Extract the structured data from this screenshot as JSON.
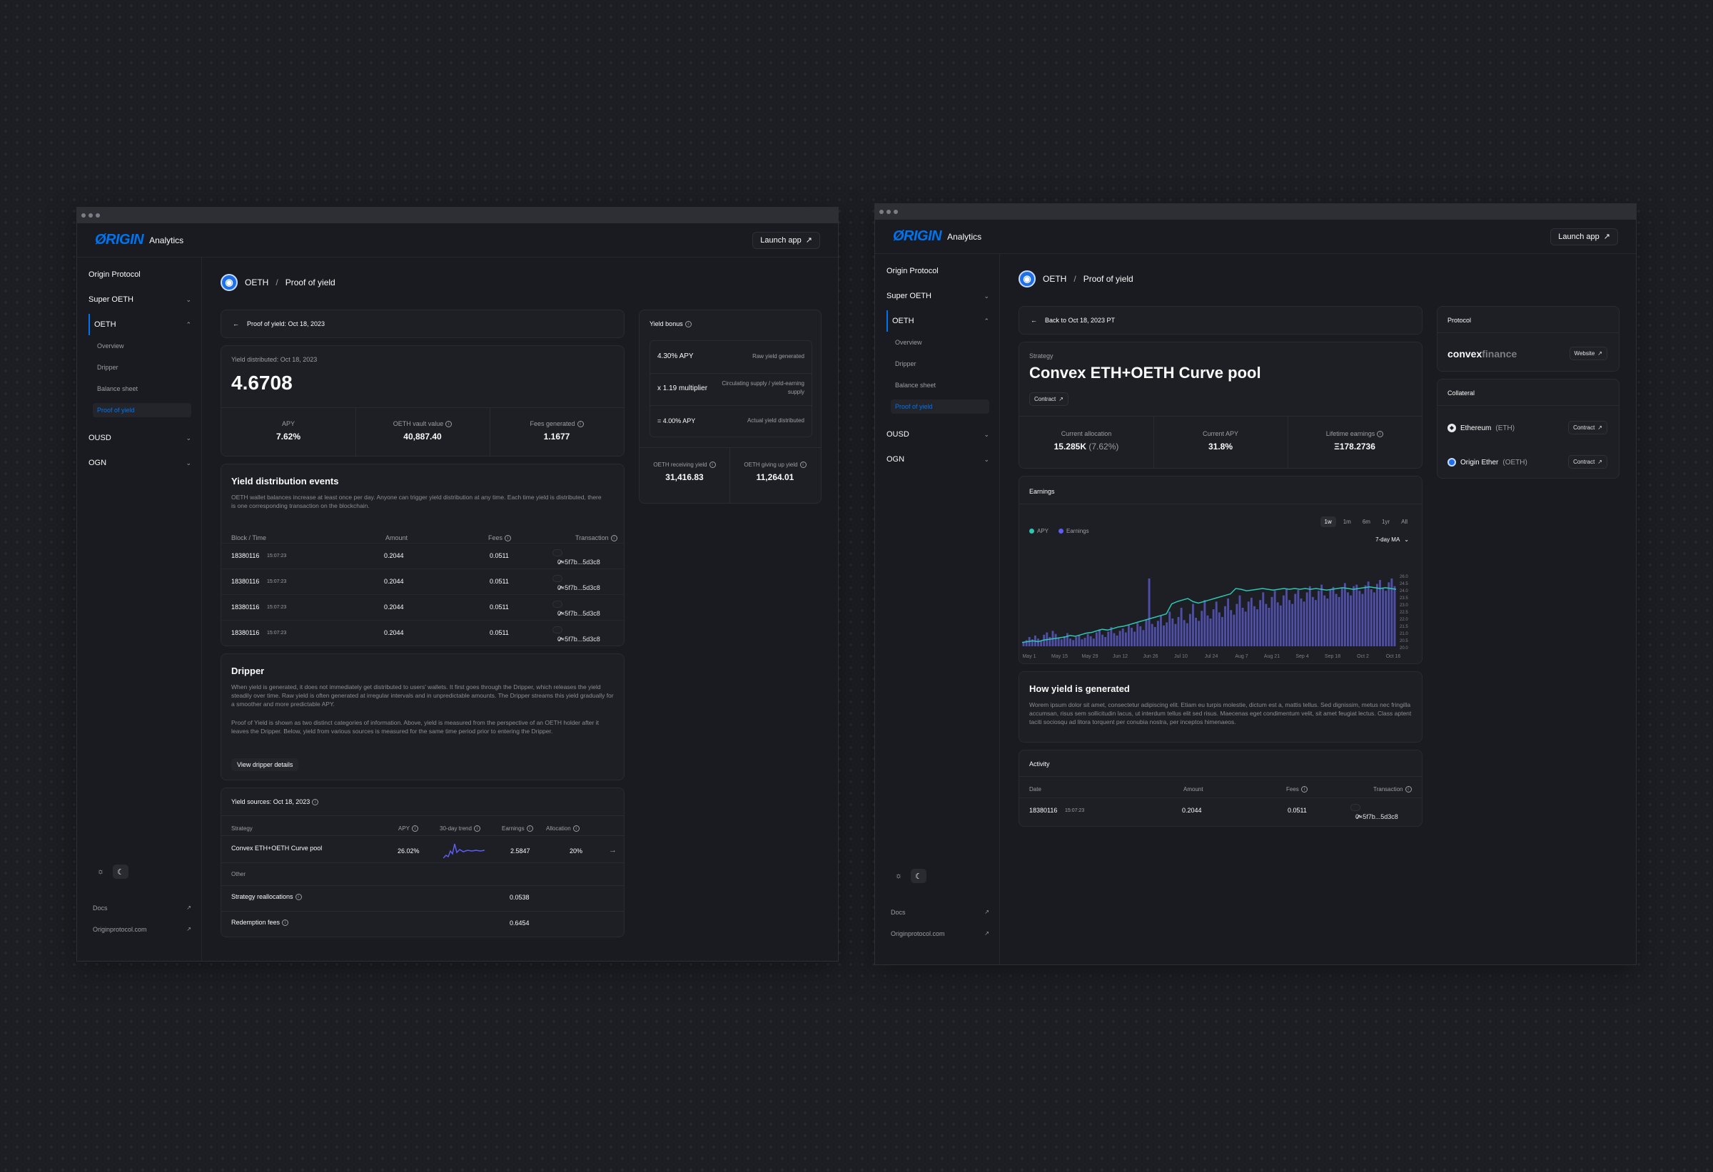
{
  "app": {
    "logo": "ØRIGIN",
    "product": "Analytics",
    "launch_label": "Launch app"
  },
  "sidebar": {
    "items": [
      {
        "label": "Origin Protocol"
      },
      {
        "label": "Super OETH"
      },
      {
        "label": "OETH"
      },
      {
        "label": "OUSD"
      },
      {
        "label": "OGN"
      }
    ],
    "oeth_sub": [
      "Overview",
      "Dripper",
      "Balance sheet",
      "Proof of yield"
    ],
    "footer": [
      "Docs",
      "Originprotocol.com"
    ]
  },
  "left": {
    "breadcrumb": {
      "token": "OETH",
      "sep": "/",
      "page": "Proof of yield"
    },
    "back": "Proof of yield: Oct 18, 2023",
    "yield_label": "Yield distributed: Oct 18, 2023",
    "yield_value": "4.6708",
    "stats": [
      {
        "label": "APY",
        "value": "7.62%"
      },
      {
        "label": "OETH vault value",
        "value": "40,887.40"
      },
      {
        "label": "Fees generated",
        "value": "1.1677"
      }
    ],
    "events": {
      "title": "Yield distribution events",
      "desc": "OETH wallet balances increase at least once per day. Anyone can trigger yield distribution at any time. Each time yield is distributed, there is one corresponding transaction on the blockchain.",
      "headers": [
        "Block / Time",
        "Amount",
        "Fees",
        "Transaction"
      ],
      "rows": [
        {
          "block": "18380116",
          "time": "15:07:23",
          "amount": "0.2044",
          "fees": "0.0511",
          "tx": "0×5f7b...5d3c8"
        },
        {
          "block": "18380116",
          "time": "15:07:23",
          "amount": "0.2044",
          "fees": "0.0511",
          "tx": "0×5f7b...5d3c8"
        },
        {
          "block": "18380116",
          "time": "15:07:23",
          "amount": "0.2044",
          "fees": "0.0511",
          "tx": "0×5f7b...5d3c8"
        },
        {
          "block": "18380116",
          "time": "15:07:23",
          "amount": "0.2044",
          "fees": "0.0511",
          "tx": "0×5f7b...5d3c8"
        }
      ]
    },
    "dripper": {
      "title": "Dripper",
      "p1": "When yield is generated, it does not immediately get distributed to users' wallets. It first goes through the Dripper, which releases the yield steadily over time. Raw yield is often generated at irregular intervals and in unpredictable amounts. The Dripper streams this yield gradually for a smoother and more predictable APY.",
      "p2": "Proof of Yield is shown as two distinct categories of information. Above, yield is measured from the perspective of an OETH holder after it leaves the Dripper. Below, yield from various sources is measured for the same time period prior to entering the Dripper.",
      "button": "View dripper details"
    },
    "sources": {
      "title": "Yield sources: Oct 18, 2023",
      "headers": [
        "Strategy",
        "APY",
        "30-day trend",
        "Earnings",
        "Allocation"
      ],
      "strategy": {
        "name": "Convex ETH+OETH Curve pool",
        "apy": "26.02%",
        "earnings": "2.5847",
        "allocation": "20%"
      },
      "other_label": "Other",
      "other": [
        {
          "name": "Strategy reallocations",
          "value": "0.0538"
        },
        {
          "name": "Redemption fees",
          "value": "0.6454"
        }
      ]
    },
    "bonus": {
      "title": "Yield bonus",
      "rows": [
        {
          "value": "4.30% APY",
          "desc": "Raw yield generated"
        },
        {
          "value": "x 1.19 multiplier",
          "desc": "Circulating supply / yield-earning supply"
        },
        {
          "value": "= 4.00% APY",
          "desc": "Actual yield distributed"
        }
      ],
      "receiving_label": "OETH receiving yield",
      "receiving_value": "31,416.83",
      "giving_label": "OETH giving up yield",
      "giving_value": "11,264.01"
    }
  },
  "right": {
    "breadcrumb": {
      "token": "OETH",
      "sep": "/",
      "page": "Proof of yield"
    },
    "back": "Back to Oct 18, 2023 PT",
    "strategy_label": "Strategy",
    "strategy_title": "Convex ETH+OETH Curve pool",
    "contract": "Contract",
    "stats": [
      {
        "label": "Current allocation",
        "value": "15.285K",
        "extra": "(7.62%)"
      },
      {
        "label": "Current APY",
        "value": "31.8%",
        "extra": ""
      },
      {
        "label": "Lifetime earnings",
        "value": "Ξ178.2736",
        "extra": ""
      }
    ],
    "earnings": {
      "title": "Earnings",
      "legend": [
        "APY",
        "Earnings"
      ],
      "ranges": [
        "1w",
        "1m",
        "6m",
        "1yr",
        "All"
      ],
      "ma": "7-day MA"
    },
    "how": {
      "title": "How yield is generated",
      "text": "Worem ipsum dolor sit amet, consectetur adipiscing elit. Etiam eu turpis molestie, dictum est a, mattis tellus. Sed dignissim, metus nec fringilla accumsan, risus sem sollicitudin lacus, ut interdum tellus elit sed risus. Maecenas eget condimentum velit, sit amet feugiat lectus. Class aptent taciti sociosqu ad litora torquent per conubia nostra, per inceptos himenaeos."
    },
    "activity": {
      "title": "Activity",
      "headers": [
        "Date",
        "Amount",
        "Fees",
        "Transaction"
      ],
      "row": {
        "block": "18380116",
        "time": "15:07:23",
        "amount": "0.2044",
        "fees": "0.0511",
        "tx": "0×5f7b...5d3c8"
      }
    },
    "protocol": {
      "title": "Protocol",
      "name": "convex",
      "name2": "finance",
      "website": "Website"
    },
    "collateral": {
      "title": "Collateral",
      "items": [
        {
          "name": "Ethereum",
          "sym": "(ETH)",
          "link": "Contract"
        },
        {
          "name": "Origin Ether",
          "sym": "(OETH)",
          "link": "Contract"
        }
      ]
    }
  },
  "colors": {
    "accent": "#0074f0",
    "apy_line": "#2fc6b0",
    "bars": "#4f4fa8",
    "bg": "#1a1b20"
  },
  "chart_data": {
    "type": "bar",
    "title": "Earnings",
    "x_ticks": [
      "May 1",
      "May 15",
      "May 29",
      "Jun 12",
      "Jun 26",
      "Jul 10",
      "Jul 24",
      "Aug 7",
      "Aug 21",
      "Sep 4",
      "Sep 18",
      "Oct 2",
      "Oct 16"
    ],
    "y_ticks": [
      "26.0",
      "24.5",
      "24.0",
      "23.5",
      "23.0",
      "22.5",
      "22.0",
      "21.5",
      "21.0",
      "20.5",
      "20.0"
    ],
    "series": [
      {
        "name": "Earnings",
        "type": "bar",
        "values": [
          5,
          8,
          12,
          9,
          14,
          10,
          7,
          15,
          18,
          12,
          20,
          16,
          11,
          9,
          13,
          17,
          10,
          8,
          12,
          14,
          9,
          11,
          16,
          13,
          10,
          18,
          22,
          15,
          12,
          19,
          25,
          17,
          14,
          20,
          23,
          18,
          28,
          24,
          19,
          30,
          26,
          21,
          35,
          88,
          29,
          25,
          33,
          40,
          27,
          31,
          45,
          36,
          29,
          38,
          50,
          34,
          30,
          42,
          55,
          37,
          33,
          46,
          60,
          40,
          36,
          48,
          58,
          44,
          38,
          52,
          62,
          47,
          41,
          55,
          66,
          50,
          45,
          58,
          63,
          52,
          48,
          60,
          70,
          55,
          50,
          64,
          72,
          57,
          53,
          66,
          75,
          60,
          55,
          68,
          73,
          62,
          58,
          70,
          78,
          64,
          60,
          72,
          80,
          66,
          62,
          74,
          77,
          68,
          64,
          76,
          82,
          70,
          66,
          78,
          80,
          72,
          68,
          79,
          84,
          74,
          70,
          81,
          86,
          76,
          72,
          83,
          88,
          78
        ]
      },
      {
        "name": "APY",
        "type": "line",
        "values": [
          5,
          6,
          7,
          6,
          8,
          9,
          10,
          11,
          12,
          14,
          13,
          15,
          17,
          18,
          20,
          22,
          21,
          23,
          25,
          26,
          28,
          30,
          32,
          34,
          36,
          38,
          40,
          42,
          55,
          58,
          60,
          62,
          58,
          56,
          58,
          60,
          62,
          64,
          66,
          68,
          75,
          74,
          72,
          73,
          74,
          75,
          74,
          73,
          74,
          75,
          74,
          75,
          74,
          75,
          74,
          75,
          74,
          73,
          74,
          75,
          76,
          75,
          74,
          75,
          76,
          77,
          76,
          75,
          76,
          75,
          74
        ]
      }
    ]
  }
}
